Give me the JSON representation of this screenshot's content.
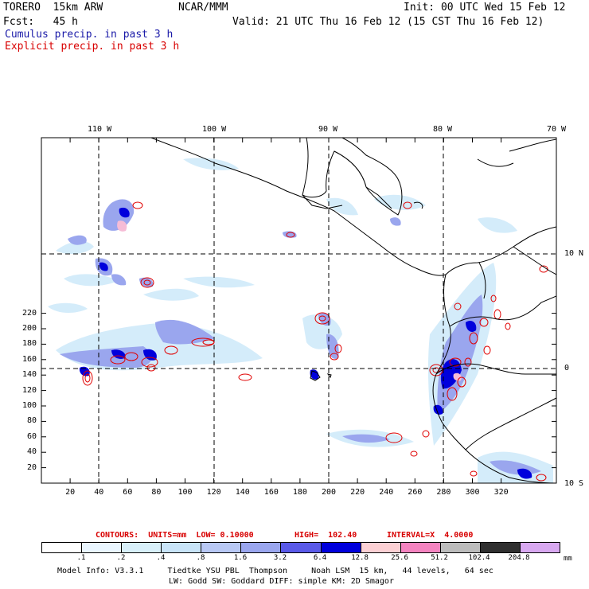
{
  "header": {
    "model": "TORERO  15km ARW",
    "org": "NCAR/MMM",
    "init": "Init: 00 UTC Wed 15 Feb 12",
    "fcst": "Fcst:   45 h",
    "valid": "Valid: 21 UTC Thu 16 Feb 12 (15 CST Thu 16 Feb 12)",
    "line1": "Cumulus precip. in past 3 h",
    "line2": "Explicit precip. in past 3 h",
    "line1_color": "#1a1aa8",
    "line2_color": "#d80000"
  },
  "map": {
    "lon_labels": [
      "110 W",
      "100 W",
      "90 W",
      "80 W",
      "70 W"
    ],
    "lat_labels": [
      "10 N",
      "0",
      "10 S"
    ],
    "x_ticks": [
      "20",
      "40",
      "60",
      "80",
      "100",
      "120",
      "140",
      "160",
      "180",
      "200",
      "220",
      "240",
      "260",
      "280",
      "300",
      "320"
    ],
    "y_ticks": [
      "220",
      "200",
      "180",
      "160",
      "140",
      "120",
      "100",
      "80",
      "60",
      "40",
      "20"
    ]
  },
  "contours": {
    "label": "CONTOURS:  UNITS=mm  LOW= 0.10000",
    "high": "HIGH=  102.40",
    "interval": "INTERVAL=X  4.0000"
  },
  "colorbar": {
    "labels": [
      ".1",
      ".2",
      ".4",
      ".8",
      "1.6",
      "3.2",
      "6.4",
      "12.8",
      "25.6",
      "51.2",
      "102.4",
      "204.8"
    ],
    "unit": "mm",
    "colors": [
      "#ffffff",
      "#eaf6ff",
      "#d8f0fa",
      "#c8e4f8",
      "#b8c8f4",
      "#9aa6ee",
      "#5a5ae8",
      "#0000dc",
      "#fcd0d4",
      "#f484c0",
      "#bcbcbc",
      "#303030",
      "#d8a8f0"
    ]
  },
  "footer": {
    "line1": "Model Info: V3.3.1     Tiedtke YSU PBL  Thompson     Noah LSM  15 km,   44 levels,   64 sec",
    "line2": "LW: Godd SW: Goddard DIFF: simple KM: 2D Smagor"
  }
}
